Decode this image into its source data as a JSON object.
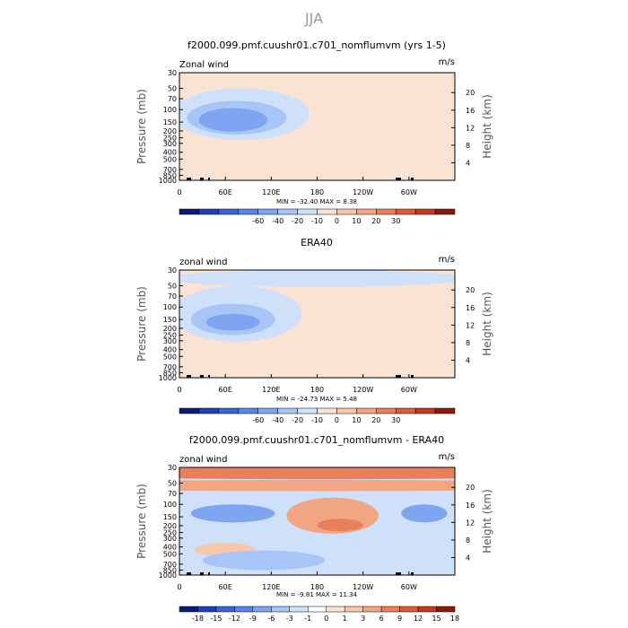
{
  "figure": {
    "title": "JJA"
  },
  "panel_geometry_note": "",
  "chart_data": [
    {
      "type": "heatmap",
      "title": "f2000.099.pmf.cuushr01.c701_nomflumvm (yrs 1-5)",
      "left_label": "Zonal wind",
      "right_label": "m/s",
      "ylabel": "Pressure (mb)",
      "y2label": "Height (km)",
      "x_ticks": [
        "0",
        "60E",
        "120E",
        "180",
        "120W",
        "60W"
      ],
      "x_tick_values": [
        0,
        60,
        120,
        180,
        240,
        300
      ],
      "xlim": [
        0,
        360
      ],
      "y_ticks": [
        "30",
        "50",
        "70",
        "100",
        "150",
        "200",
        "250",
        "300",
        "400",
        "500",
        "700",
        "850",
        "1000"
      ],
      "y_tick_values": [
        30,
        50,
        70,
        100,
        150,
        200,
        250,
        300,
        400,
        500,
        700,
        850,
        1000
      ],
      "ylim": [
        30,
        1000
      ],
      "y2_ticks": [
        "4",
        "8",
        "12",
        "16",
        "20"
      ],
      "y2_tick_values": [
        4,
        8,
        12,
        16,
        20
      ],
      "stats": "MIN = -32.40   MAX =   8.38",
      "colorbar": {
        "labels": [
          "-60",
          "-40",
          "-20",
          "-10",
          "0",
          "10",
          "20",
          "30"
        ],
        "colors": [
          "#0a1b7a",
          "#1f3fb8",
          "#3466d6",
          "#5686e6",
          "#7ea6f0",
          "#a7c5f6",
          "#cfe0fa",
          "#f9e3d2",
          "#f7c7aa",
          "#f2a582",
          "#e9805c",
          "#de5a38",
          "#c7381e",
          "#8c1a0b"
        ]
      },
      "field": [
        {
          "cx": 70,
          "cy": 150,
          "rx": 45,
          "rp": 55,
          "value": -30
        },
        {
          "cx": 75,
          "cy": 150,
          "rx": 65,
          "rp": 75,
          "value": -18
        },
        {
          "cx": 80,
          "cy": 160,
          "rx": 90,
          "rp": 110,
          "value": -8
        },
        {
          "cx": 200,
          "cy": 140,
          "rx": 55,
          "rp": 50,
          "value": 6
        },
        {
          "cx": 60,
          "cy": 600,
          "rx": 45,
          "rp": 250,
          "value": 4
        },
        {
          "cx": 300,
          "cy": 200,
          "rx": 40,
          "rp": 80,
          "value": 3
        }
      ]
    },
    {
      "type": "heatmap",
      "title": "ERA40",
      "left_label": "zonal wind",
      "right_label": "m/s",
      "ylabel": "Pressure (mb)",
      "y2label": "Height (km)",
      "x_ticks": [
        "0",
        "60E",
        "120E",
        "180",
        "120W",
        "60W"
      ],
      "x_tick_values": [
        0,
        60,
        120,
        180,
        240,
        300
      ],
      "xlim": [
        0,
        360
      ],
      "y_ticks": [
        "30",
        "50",
        "70",
        "100",
        "150",
        "200",
        "250",
        "300",
        "400",
        "500",
        "700",
        "850",
        "1000"
      ],
      "y_tick_values": [
        30,
        50,
        70,
        100,
        150,
        200,
        250,
        300,
        400,
        500,
        700,
        850,
        1000
      ],
      "ylim": [
        30,
        1000
      ],
      "y2_ticks": [
        "4",
        "8",
        "12",
        "16",
        "20"
      ],
      "y2_tick_values": [
        4,
        8,
        12,
        16,
        20
      ],
      "stats": "MIN = -24.73   MAX =   5.48",
      "colorbar": {
        "labels": [
          "-60",
          "-40",
          "-20",
          "-10",
          "0",
          "10",
          "20",
          "30"
        ],
        "colors": [
          "#0a1b7a",
          "#1f3fb8",
          "#3466d6",
          "#5686e6",
          "#7ea6f0",
          "#a7c5f6",
          "#cfe0fa",
          "#f9e3d2",
          "#f7c7aa",
          "#f2a582",
          "#e9805c",
          "#de5a38",
          "#c7381e",
          "#8c1a0b"
        ]
      },
      "field": [
        {
          "cx": 70,
          "cy": 170,
          "rx": 35,
          "rp": 45,
          "value": -22
        },
        {
          "cx": 70,
          "cy": 170,
          "rx": 55,
          "rp": 80,
          "value": -12
        },
        {
          "cx": 75,
          "cy": 180,
          "rx": 85,
          "rp": 130,
          "value": -5
        },
        {
          "cx": 180,
          "cy": 40,
          "rx": 200,
          "rp": 12,
          "value": -4
        },
        {
          "cx": 230,
          "cy": 150,
          "rx": 60,
          "rp": 70,
          "value": 4
        },
        {
          "cx": 60,
          "cy": 650,
          "rx": 50,
          "rp": 250,
          "value": 3
        }
      ]
    },
    {
      "type": "heatmap",
      "title": "f2000.099.pmf.cuushr01.c701_nomflumvm - ERA40",
      "left_label": "zonal wind",
      "right_label": "m/s",
      "ylabel": "Pressure (mb)",
      "y2label": "Height (km)",
      "x_ticks": [
        "0",
        "60E",
        "120E",
        "180",
        "120W",
        "60W"
      ],
      "x_tick_values": [
        0,
        60,
        120,
        180,
        240,
        300
      ],
      "xlim": [
        0,
        360
      ],
      "y_ticks": [
        "30",
        "50",
        "70",
        "100",
        "150",
        "200",
        "250",
        "300",
        "400",
        "500",
        "700",
        "850",
        "1000"
      ],
      "y_tick_values": [
        30,
        50,
        70,
        100,
        150,
        200,
        250,
        300,
        400,
        500,
        700,
        850,
        1000
      ],
      "ylim": [
        30,
        1000
      ],
      "y2_ticks": [
        "4",
        "8",
        "12",
        "16",
        "20"
      ],
      "y2_tick_values": [
        4,
        8,
        12,
        16,
        20
      ],
      "stats": "MIN =  -9.81   MAX =  11.34",
      "colorbar": {
        "labels": [
          "-18",
          "-15",
          "-12",
          "-9",
          "-6",
          "-3",
          "-1",
          "0",
          "1",
          "3",
          "6",
          "9",
          "12",
          "15",
          "18"
        ],
        "colors": [
          "#0a1b7a",
          "#1f3fb8",
          "#3466d6",
          "#5686e6",
          "#7ea6f0",
          "#a7c5f6",
          "#cfe0fa",
          "#ffffff",
          "#f9e3d2",
          "#f7c7aa",
          "#f2a582",
          "#e9805c",
          "#de5a38",
          "#c7381e",
          "#8c1a0b"
        ]
      },
      "field": [
        {
          "cx": 180,
          "cy": 32,
          "rx": 400,
          "rp": 12,
          "value": 8
        },
        {
          "cx": 180,
          "cy": 55,
          "rx": 400,
          "rp": 10,
          "value": 4
        },
        {
          "cx": 70,
          "cy": 140,
          "rx": 55,
          "rp": 40,
          "value": -8
        },
        {
          "cx": 320,
          "cy": 140,
          "rx": 30,
          "rp": 40,
          "value": -6
        },
        {
          "cx": 200,
          "cy": 170,
          "rx": 60,
          "rp": 90,
          "value": 5
        },
        {
          "cx": 210,
          "cy": 200,
          "rx": 30,
          "rp": 40,
          "value": 8
        },
        {
          "cx": 60,
          "cy": 450,
          "rx": 40,
          "rp": 100,
          "value": 3
        },
        {
          "cx": 110,
          "cy": 650,
          "rx": 80,
          "rp": 200,
          "value": -4
        }
      ]
    }
  ]
}
